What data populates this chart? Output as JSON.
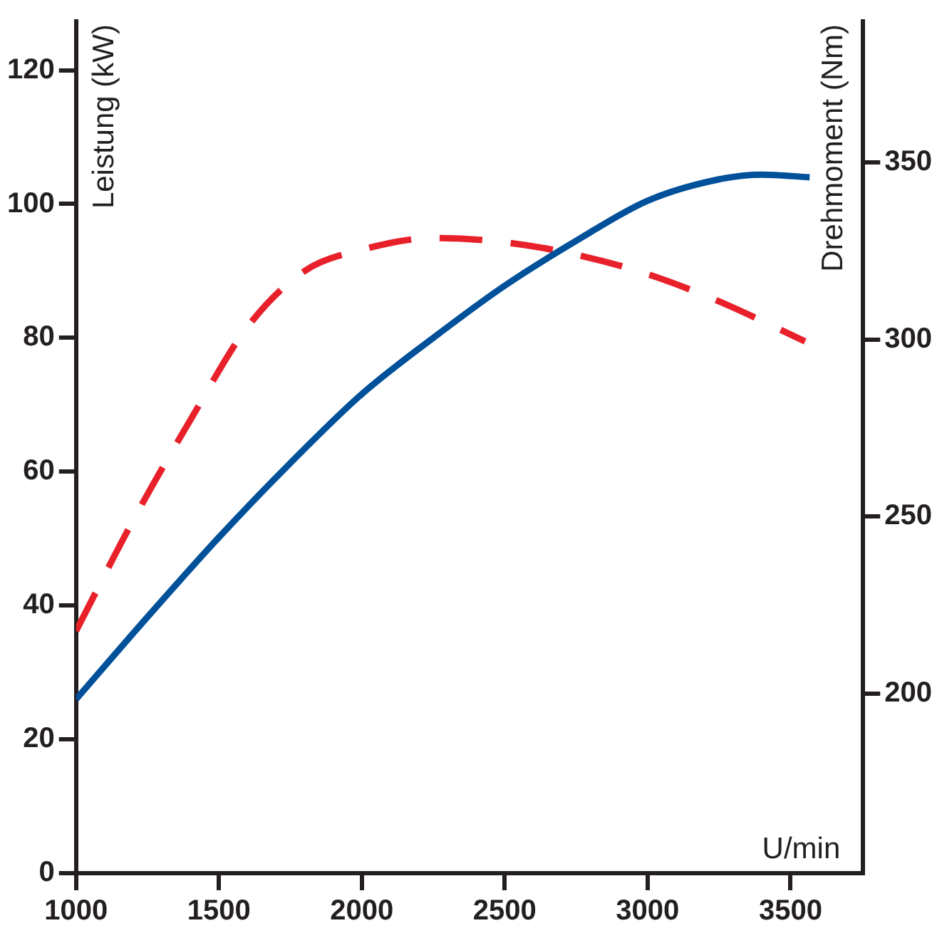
{
  "chart_data": {
    "type": "line",
    "xlabel": "U/min",
    "ylabel": "Leistung (kW)",
    "y2label": "Drehmoment (Nm)",
    "xlim": [
      1000,
      3754
    ],
    "xticks": [
      1000,
      1500,
      2000,
      2500,
      3000,
      3500
    ],
    "ylim": [
      0,
      127.3
    ],
    "yticks": [
      0,
      20,
      40,
      60,
      80,
      100,
      120
    ],
    "y2lim": [
      149.3,
      389.9
    ],
    "y2ticks": [
      200,
      250,
      300,
      350
    ],
    "grid": false,
    "legend": false,
    "marker": "none",
    "series": [
      {
        "color": "#00509a",
        "line_style": "solid",
        "x": [
          1000,
          1250,
          1500,
          1750,
          2000,
          2250,
          2500,
          2750,
          3000,
          3250,
          3400,
          3567
        ],
        "values": [
          26,
          38.3,
          50.2,
          61.3,
          71.6,
          80,
          87.8,
          94.5,
          100.5,
          103.7,
          104.4,
          104
        ]
      },
      {
        "color": "#e8202a",
        "line_style": "dashed",
        "axis": "y2",
        "x": [
          1000,
          1200,
          1400,
          1600,
          1800,
          2000,
          2250,
          2500,
          2750,
          3000,
          3250,
          3551
        ],
        "values": [
          217.7,
          249,
          277.3,
          303.6,
          319.4,
          325.4,
          328.7,
          327.5,
          324,
          318.5,
          310.8,
          299.5
        ]
      }
    ]
  }
}
